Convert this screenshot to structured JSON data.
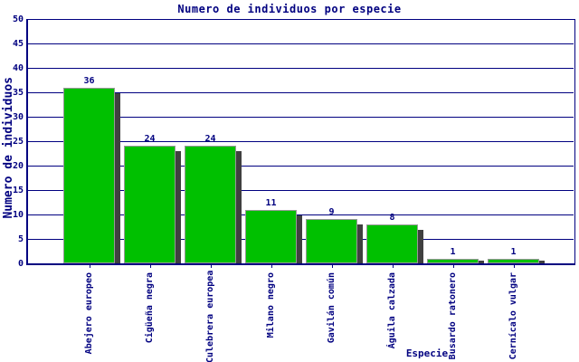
{
  "chart_data": {
    "type": "bar",
    "title": "Numero de individuos por especie",
    "xlabel": "Especie",
    "ylabel": "Numero de individuos",
    "categories": [
      "Abejero europeo",
      "Cigüeña negra",
      "Culebrera europea",
      "Milano negro",
      "Gavilán común",
      "Águila calzada",
      "Busardo ratonero",
      "Cernícalo vulgar"
    ],
    "values": [
      36,
      24,
      24,
      11,
      9,
      8,
      1,
      1
    ],
    "ylim": [
      0,
      50
    ],
    "ytick_step": 5,
    "grid": "horizontal",
    "legend": "none",
    "colors": {
      "bar_fill": "#00c000",
      "bar_border": "#999999",
      "bar_shadow": "#404040",
      "axis_and_text": "#000080",
      "background": "#ffffff"
    }
  }
}
